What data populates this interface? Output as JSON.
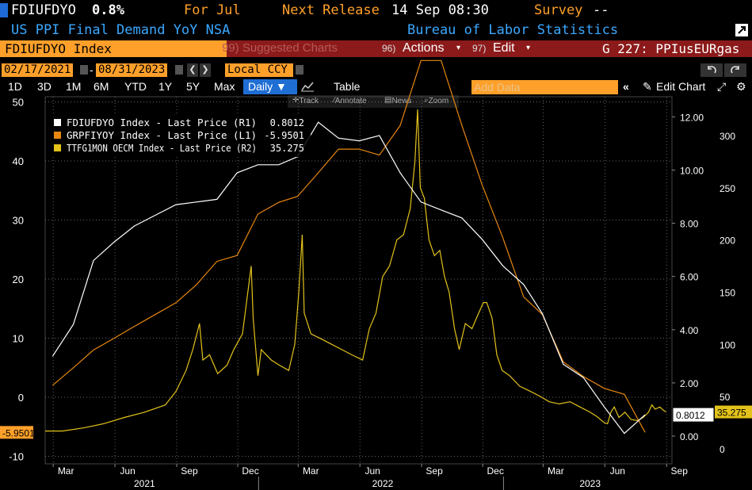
{
  "header": {
    "ticker": "FDIUFDYO",
    "last_value": "0.8%",
    "period": "For Jul",
    "next_release_label": "Next Release",
    "next_release_value": "14 Sep 08:30",
    "survey_label": "Survey",
    "survey_value": "--",
    "description": "US PPI Final Demand YoY NSA",
    "source": "Bureau of Labor Statistics"
  },
  "command_bar": {
    "security": "FDIUFDYO Index",
    "suggested_charts": "99) Suggested Charts",
    "actions_num": "96)",
    "actions": "Actions",
    "edit_num": "97)",
    "edit": "Edit",
    "graph_id": "G 227: PPIusEURgas"
  },
  "date_bar": {
    "start": "02/17/2021",
    "end": "08/31/2023",
    "currency": "Local CCY"
  },
  "periods": [
    "1D",
    "3D",
    "1M",
    "6M",
    "YTD",
    "1Y",
    "5Y",
    "Max"
  ],
  "frequency": "Daily",
  "table_label": "Table",
  "add_data_placeholder": "Add Data",
  "edit_chart_label": "Edit Chart",
  "tools": [
    "Track",
    "Annotate",
    "News",
    "Zoom"
  ],
  "colors": {
    "fdiufdyo": "#ffffff",
    "grpfiyoy": "#e8870f",
    "ttfg1mon": "#e3c21a",
    "grid": "#888888",
    "accent_orange": "#ffa02a",
    "blue": "#3aa8ff",
    "red_bar": "#8c1a1a"
  },
  "chart_data": {
    "type": "line",
    "x_axis": {
      "months": [
        "Mar",
        "Jun",
        "Sep",
        "Dec",
        "Mar",
        "Jun",
        "Sep",
        "Dec",
        "Mar",
        "Jun",
        "Sep"
      ],
      "years": [
        "2021",
        "2022",
        "2023"
      ]
    },
    "axes": {
      "L1": {
        "ticks": [
          "-10",
          "0",
          "10",
          "20",
          "30",
          "40",
          "50"
        ],
        "ylim": [
          -10,
          50
        ]
      },
      "R1": {
        "ticks": [
          "0.00",
          "2.00",
          "4.00",
          "6.00",
          "8.00",
          "10.00",
          "12.00"
        ],
        "ylim": [
          0,
          12
        ]
      },
      "R2": {
        "ticks": [
          "0",
          "50",
          "100",
          "150",
          "200",
          "250",
          "300"
        ],
        "ylim": [
          0,
          300
        ]
      }
    },
    "legend_position": "top-left",
    "series": [
      {
        "name": "FDIUFDYO Index - Last Price (R1)",
        "last": "0.8012",
        "axis": "R1",
        "color": "#ffffff",
        "points": [
          [
            "2021-02-28",
            3.0
          ],
          [
            "2021-03-31",
            4.2
          ],
          [
            "2021-04-30",
            6.6
          ],
          [
            "2021-05-31",
            7.3
          ],
          [
            "2021-06-30",
            7.9
          ],
          [
            "2021-07-31",
            8.3
          ],
          [
            "2021-08-31",
            8.7
          ],
          [
            "2021-09-30",
            8.8
          ],
          [
            "2021-10-31",
            8.9
          ],
          [
            "2021-11-30",
            9.9
          ],
          [
            "2021-12-31",
            10.2
          ],
          [
            "2022-01-31",
            10.2
          ],
          [
            "2022-02-28",
            10.5
          ],
          [
            "2022-03-31",
            11.8
          ],
          [
            "2022-04-30",
            11.2
          ],
          [
            "2022-05-31",
            11.1
          ],
          [
            "2022-06-30",
            11.3
          ],
          [
            "2022-07-31",
            9.9
          ],
          [
            "2022-08-31",
            8.8
          ],
          [
            "2022-09-30",
            8.5
          ],
          [
            "2022-10-31",
            8.2
          ],
          [
            "2022-11-30",
            7.4
          ],
          [
            "2022-12-31",
            6.4
          ],
          [
            "2023-01-31",
            5.7
          ],
          [
            "2023-02-28",
            4.6
          ],
          [
            "2023-03-31",
            2.7
          ],
          [
            "2023-04-30",
            2.2
          ],
          [
            "2023-05-31",
            1.1
          ],
          [
            "2023-06-30",
            0.1
          ],
          [
            "2023-07-31",
            0.8012
          ]
        ]
      },
      {
        "name": "GRPFIYOY Index - Last Price (L1)",
        "last": "-5.9501",
        "axis": "L1",
        "color": "#e8870f",
        "points": [
          [
            "2021-02-28",
            2.0
          ],
          [
            "2021-03-31",
            5.0
          ],
          [
            "2021-04-30",
            8.0
          ],
          [
            "2021-05-31",
            10.0
          ],
          [
            "2021-06-30",
            12.0
          ],
          [
            "2021-07-31",
            14.0
          ],
          [
            "2021-08-31",
            16.0
          ],
          [
            "2021-09-30",
            19.0
          ],
          [
            "2021-10-31",
            23.0
          ],
          [
            "2021-11-30",
            24.0
          ],
          [
            "2021-12-31",
            31.0
          ],
          [
            "2022-01-31",
            33.0
          ],
          [
            "2022-02-28",
            34.0
          ],
          [
            "2022-03-31",
            38.0
          ],
          [
            "2022-04-30",
            42.0
          ],
          [
            "2022-05-31",
            42.0
          ],
          [
            "2022-06-30",
            41.0
          ],
          [
            "2022-07-31",
            46.0
          ],
          [
            "2022-08-31",
            57.0
          ],
          [
            "2022-09-30",
            57.0
          ],
          [
            "2022-10-31",
            46.0
          ],
          [
            "2022-11-30",
            36.0
          ],
          [
            "2022-12-31",
            27.0
          ],
          [
            "2023-01-31",
            17.0
          ],
          [
            "2023-02-28",
            14.0
          ],
          [
            "2023-03-31",
            6.0
          ],
          [
            "2023-04-30",
            3.5
          ],
          [
            "2023-05-31",
            1.5
          ],
          [
            "2023-06-30",
            0.5
          ],
          [
            "2023-07-31",
            -5.95
          ]
        ]
      },
      {
        "name": "TTFG1MON OECM Index - Last Price (R2)",
        "last": "35.275",
        "axis": "R2",
        "color": "#e3c21a",
        "points": [
          [
            "2021-02-17",
            17
          ],
          [
            "2021-03-15",
            17
          ],
          [
            "2021-04-15",
            20
          ],
          [
            "2021-05-15",
            24
          ],
          [
            "2021-06-15",
            30
          ],
          [
            "2021-07-15",
            35
          ],
          [
            "2021-08-15",
            42
          ],
          [
            "2021-08-31",
            55
          ],
          [
            "2021-09-15",
            75
          ],
          [
            "2021-09-25",
            95
          ],
          [
            "2021-10-05",
            120
          ],
          [
            "2021-10-10",
            85
          ],
          [
            "2021-10-20",
            90
          ],
          [
            "2021-11-01",
            72
          ],
          [
            "2021-11-15",
            80
          ],
          [
            "2021-11-25",
            95
          ],
          [
            "2021-12-08",
            110
          ],
          [
            "2021-12-21",
            175
          ],
          [
            "2021-12-24",
            125
          ],
          [
            "2021-12-31",
            70
          ],
          [
            "2022-01-05",
            95
          ],
          [
            "2022-01-20",
            85
          ],
          [
            "2022-02-01",
            80
          ],
          [
            "2022-02-15",
            75
          ],
          [
            "2022-02-24",
            100
          ],
          [
            "2022-03-02",
            150
          ],
          [
            "2022-03-07",
            205
          ],
          [
            "2022-03-10",
            130
          ],
          [
            "2022-03-20",
            110
          ],
          [
            "2022-04-05",
            105
          ],
          [
            "2022-04-20",
            100
          ],
          [
            "2022-05-05",
            95
          ],
          [
            "2022-05-20",
            90
          ],
          [
            "2022-06-05",
            85
          ],
          [
            "2022-06-15",
            115
          ],
          [
            "2022-06-25",
            130
          ],
          [
            "2022-07-05",
            165
          ],
          [
            "2022-07-15",
            175
          ],
          [
            "2022-07-26",
            200
          ],
          [
            "2022-08-05",
            205
          ],
          [
            "2022-08-15",
            230
          ],
          [
            "2022-08-22",
            275
          ],
          [
            "2022-08-26",
            325
          ],
          [
            "2022-08-30",
            250
          ],
          [
            "2022-09-05",
            240
          ],
          [
            "2022-09-12",
            200
          ],
          [
            "2022-09-20",
            185
          ],
          [
            "2022-09-28",
            190
          ],
          [
            "2022-10-05",
            165
          ],
          [
            "2022-10-12",
            150
          ],
          [
            "2022-10-20",
            115
          ],
          [
            "2022-10-27",
            95
          ],
          [
            "2022-11-05",
            120
          ],
          [
            "2022-11-15",
            115
          ],
          [
            "2022-11-25",
            130
          ],
          [
            "2022-12-02",
            140
          ],
          [
            "2022-12-07",
            140
          ],
          [
            "2022-12-15",
            125
          ],
          [
            "2022-12-22",
            90
          ],
          [
            "2022-12-30",
            75
          ],
          [
            "2023-01-10",
            70
          ],
          [
            "2023-01-25",
            60
          ],
          [
            "2023-02-10",
            55
          ],
          [
            "2023-02-25",
            50
          ],
          [
            "2023-03-10",
            45
          ],
          [
            "2023-03-25",
            43
          ],
          [
            "2023-04-10",
            45
          ],
          [
            "2023-04-25",
            40
          ],
          [
            "2023-05-10",
            35
          ],
          [
            "2023-05-20",
            31
          ],
          [
            "2023-05-31",
            25
          ],
          [
            "2023-06-05",
            24
          ],
          [
            "2023-06-10",
            35
          ],
          [
            "2023-06-15",
            40
          ],
          [
            "2023-06-22",
            30
          ],
          [
            "2023-07-01",
            35
          ],
          [
            "2023-07-10",
            28
          ],
          [
            "2023-07-20",
            27
          ],
          [
            "2023-07-28",
            30
          ],
          [
            "2023-08-05",
            35
          ],
          [
            "2023-08-10",
            42
          ],
          [
            "2023-08-15",
            38
          ],
          [
            "2023-08-22",
            40
          ],
          [
            "2023-08-27",
            37
          ],
          [
            "2023-08-31",
            35.275
          ]
        ]
      }
    ]
  }
}
